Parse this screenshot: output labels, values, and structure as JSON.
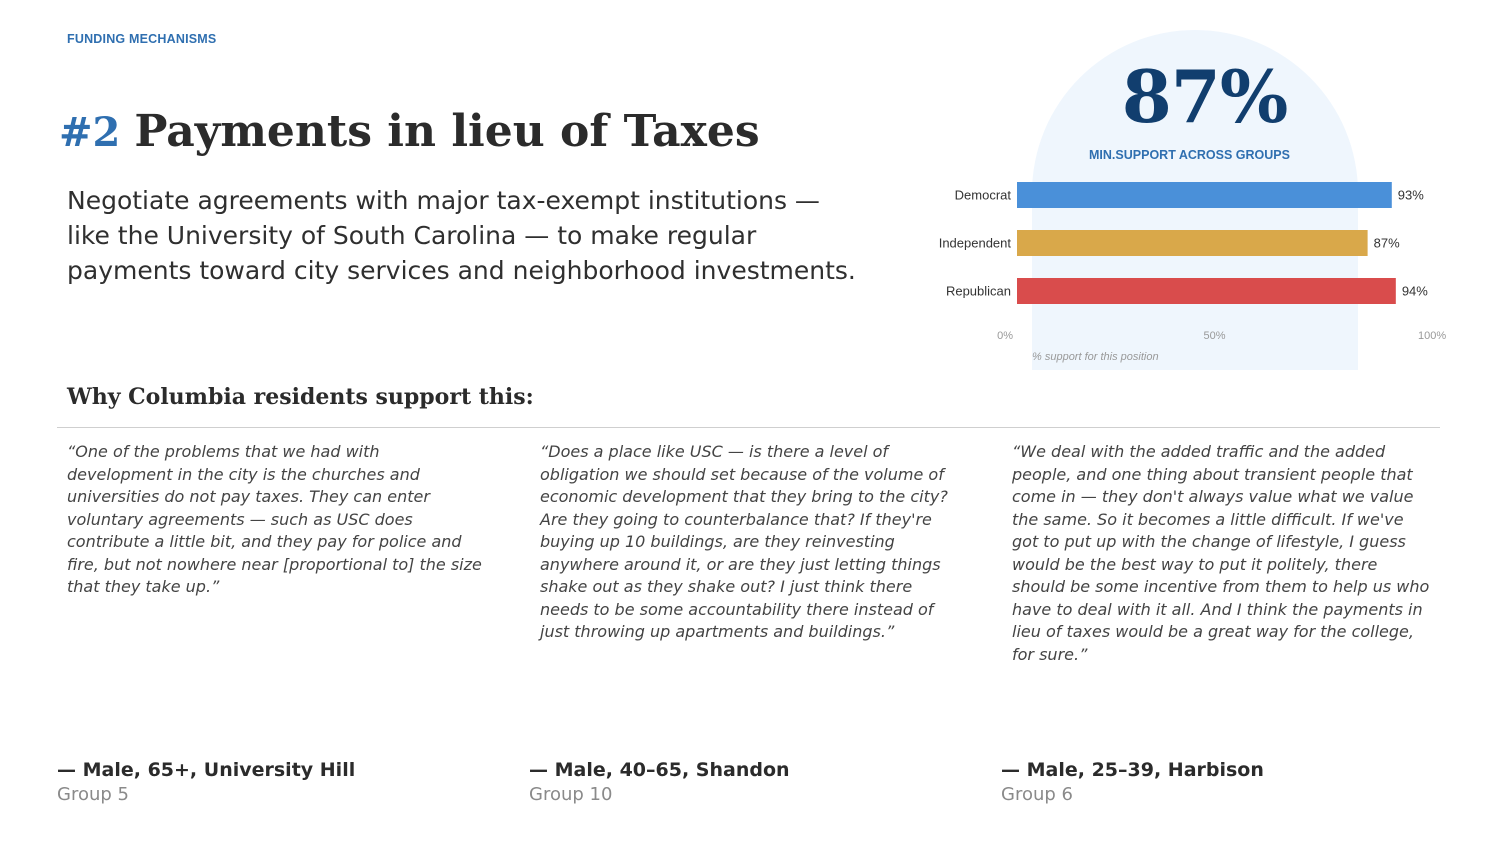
{
  "header": {
    "section_label": "FUNDING MECHANISMS"
  },
  "title": {
    "number": "#2",
    "text": "Payments in lieu of Taxes"
  },
  "lead": "Negotiate agreements with major tax-exempt institutions — like the University of South Carolina — to make regular payments toward city services and neighborhood investments.",
  "stat": {
    "value": "87%",
    "label": "MIN.SUPPORT ACROSS GROUPS"
  },
  "why_heading": "Why Columbia residents support this:",
  "quotes": [
    {
      "text": "“One of the problems that we had with development in the city is the churches and universities do not pay taxes. They can enter voluntary agreements — such as USC does contribute a little bit, and they pay for police and fire, but not nowhere near [proportional to] the size that they take up.”",
      "name": "— Male, 65+, University Hill",
      "group": "Group 5"
    },
    {
      "text": "“Does a place like USC — is there a level of obligation we should set because of the volume of economic development that they bring to the city? Are they going to counterbalance that? If they're buying up 10 buildings, are they reinvesting anywhere around it, or are they just letting things shake out as they shake out? I just think there needs to be some accountability there instead of just throwing up apartments and buildings.”",
      "name": "— Male, 40–65, Shandon",
      "group": "Group 10"
    },
    {
      "text": "“We deal with the added traffic and the added people, and one thing about transient people that come in — they don't always value what we value the same. So it becomes a little difficult. If we've got to put up with the change of lifestyle, I guess would be the best way to put it politely, there should be some incentive from them to help us who have to deal with it all. And I think the payments in lieu of taxes would be a great way for the college, for sure.”",
      "name": "— Male, 25–39, Harbison",
      "group": "Group 6"
    }
  ],
  "chart_data": {
    "type": "bar",
    "orientation": "horizontal",
    "categories": [
      "Democrat",
      "Independent",
      "Republican"
    ],
    "values": [
      93,
      87,
      94
    ],
    "value_labels": [
      "93%",
      "87%",
      "94%"
    ],
    "colors": [
      "#4a90d9",
      "#d9a84a",
      "#d94c4c"
    ],
    "xlim": [
      0,
      100
    ],
    "x_ticks": [
      "0%",
      "50%",
      "100%"
    ],
    "xlabel": "% support for this position",
    "grid": false
  }
}
